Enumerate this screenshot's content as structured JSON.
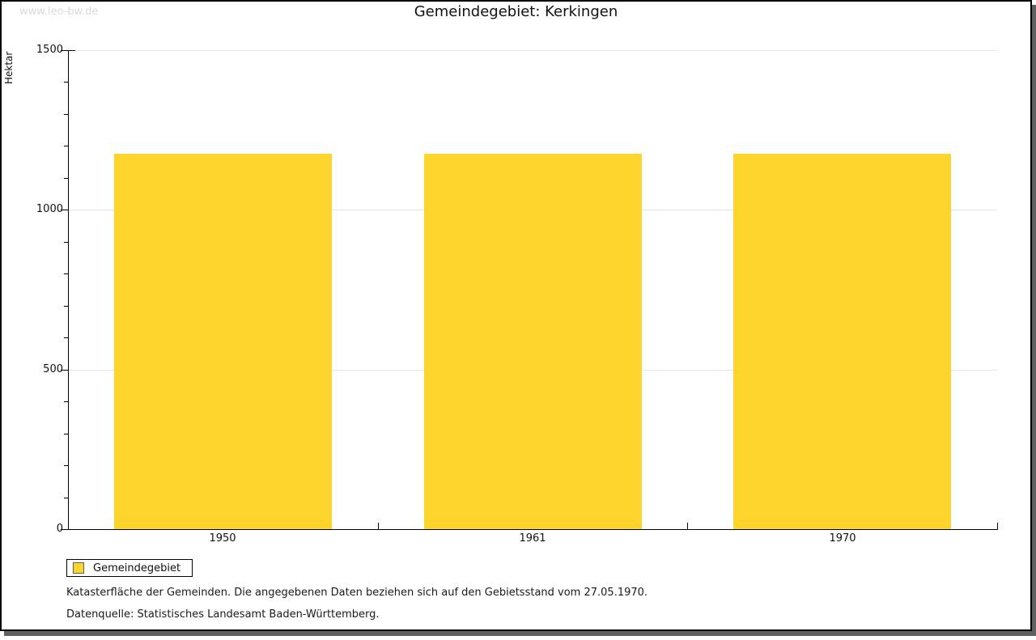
{
  "watermark": "www.leo-bw.de",
  "title": "Gemeindegebiet: Kerkingen",
  "chart_data": {
    "type": "bar",
    "title": "Gemeindegebiet: Kerkingen",
    "categories": [
      "1950",
      "1961",
      "1970"
    ],
    "values": [
      1176,
      1176,
      1176
    ],
    "series_name": "Gemeindegebiet",
    "xlabel": "",
    "ylabel": "Hektar",
    "ylim": [
      0,
      1500
    ],
    "yticks": [
      0,
      500,
      1000,
      1500
    ],
    "minor_tick_step": 100,
    "grid": true,
    "legend_position": "bottom-left",
    "bar_color": "#FDD42C"
  },
  "legend": {
    "label": "Gemeindegebiet",
    "swatch_color": "#FDD42C"
  },
  "footer": {
    "line1": "Katasterfläche der Gemeinden. Die angegebenen Daten beziehen sich auf den Gebietsstand vom 27.05.1970.",
    "line2": "Datenquelle: Statistisches Landesamt Baden-Württemberg."
  }
}
